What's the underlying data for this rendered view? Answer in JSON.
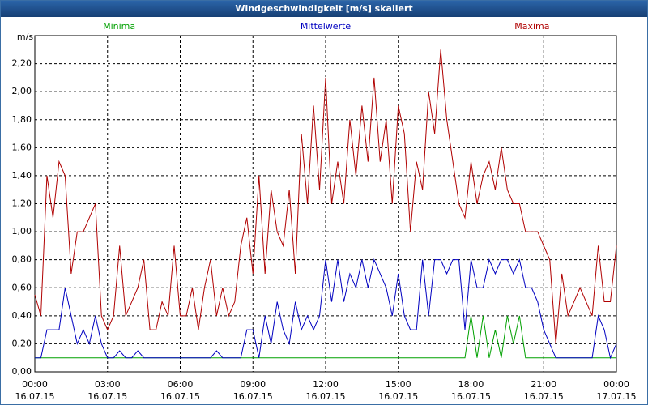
{
  "chart_data": {
    "type": "line",
    "title": "Windgeschwindigkeit [m/s] skaliert",
    "y_unit": "m/s",
    "x": [
      0,
      0.25,
      0.5,
      0.75,
      1,
      1.25,
      1.5,
      1.75,
      2,
      2.25,
      2.5,
      2.75,
      3,
      3.25,
      3.5,
      3.75,
      4,
      4.25,
      4.5,
      4.75,
      5,
      5.25,
      5.5,
      5.75,
      6,
      6.25,
      6.5,
      6.75,
      7,
      7.25,
      7.5,
      7.75,
      8,
      8.25,
      8.5,
      8.75,
      9,
      9.25,
      9.5,
      9.75,
      10,
      10.25,
      10.5,
      10.75,
      11,
      11.25,
      11.5,
      11.75,
      12,
      12.25,
      12.5,
      12.75,
      13,
      13.25,
      13.5,
      13.75,
      14,
      14.25,
      14.5,
      14.75,
      15,
      15.25,
      15.5,
      15.75,
      16,
      16.25,
      16.5,
      16.75,
      17,
      17.25,
      17.5,
      17.75,
      18,
      18.25,
      18.5,
      18.75,
      19,
      19.25,
      19.5,
      19.75,
      20,
      20.25,
      20.5,
      20.75,
      21,
      21.25,
      21.5,
      21.75,
      22,
      22.25,
      22.5,
      22.75,
      23,
      23.25,
      23.5,
      23.75,
      24
    ],
    "series": [
      {
        "name": "Minima",
        "color": "#00a000",
        "values": [
          0.1,
          0.1,
          0.1,
          0.1,
          0.1,
          0.1,
          0.1,
          0.1,
          0.1,
          0.1,
          0.1,
          0.1,
          0.1,
          0.1,
          0.1,
          0.1,
          0.1,
          0.1,
          0.1,
          0.1,
          0.1,
          0.1,
          0.1,
          0.1,
          0.1,
          0.1,
          0.1,
          0.1,
          0.1,
          0.1,
          0.1,
          0.1,
          0.1,
          0.1,
          0.1,
          0.1,
          0.1,
          0.1,
          0.1,
          0.1,
          0.1,
          0.1,
          0.1,
          0.1,
          0.1,
          0.1,
          0.1,
          0.1,
          0.1,
          0.1,
          0.1,
          0.1,
          0.1,
          0.1,
          0.1,
          0.1,
          0.1,
          0.1,
          0.1,
          0.1,
          0.1,
          0.1,
          0.1,
          0.1,
          0.1,
          0.1,
          0.1,
          0.1,
          0.1,
          0.1,
          0.1,
          0.1,
          0.4,
          0.1,
          0.4,
          0.1,
          0.3,
          0.1,
          0.4,
          0.2,
          0.4,
          0.1,
          0.1,
          0.1,
          0.1,
          0.1,
          0.1,
          0.1,
          0.1,
          0.1,
          0.1,
          0.1,
          0.1,
          0.1,
          0.1,
          0.1,
          0.1
        ]
      },
      {
        "name": "Mittelwerte",
        "color": "#0000c0",
        "values": [
          0.1,
          0.1,
          0.3,
          0.3,
          0.3,
          0.6,
          0.4,
          0.2,
          0.3,
          0.2,
          0.4,
          0.2,
          0.1,
          0.1,
          0.15,
          0.1,
          0.1,
          0.15,
          0.1,
          0.1,
          0.1,
          0.1,
          0.1,
          0.1,
          0.1,
          0.1,
          0.1,
          0.1,
          0.1,
          0.1,
          0.15,
          0.1,
          0.1,
          0.1,
          0.1,
          0.3,
          0.3,
          0.1,
          0.4,
          0.2,
          0.5,
          0.3,
          0.2,
          0.5,
          0.3,
          0.4,
          0.3,
          0.4,
          0.8,
          0.5,
          0.8,
          0.5,
          0.7,
          0.6,
          0.8,
          0.6,
          0.8,
          0.7,
          0.6,
          0.4,
          0.7,
          0.4,
          0.3,
          0.3,
          0.8,
          0.4,
          0.8,
          0.8,
          0.7,
          0.8,
          0.8,
          0.3,
          0.8,
          0.6,
          0.6,
          0.8,
          0.7,
          0.8,
          0.8,
          0.7,
          0.8,
          0.6,
          0.6,
          0.5,
          0.3,
          0.2,
          0.1,
          0.1,
          0.1,
          0.1,
          0.1,
          0.1,
          0.1,
          0.4,
          0.3,
          0.1,
          0.2
        ]
      },
      {
        "name": "Maxima",
        "color": "#b00000",
        "values": [
          0.55,
          0.4,
          1.4,
          1.1,
          1.5,
          1.4,
          0.7,
          1.0,
          1.0,
          1.1,
          1.2,
          0.4,
          0.3,
          0.4,
          0.9,
          0.4,
          0.5,
          0.6,
          0.8,
          0.3,
          0.3,
          0.5,
          0.4,
          0.9,
          0.4,
          0.4,
          0.6,
          0.3,
          0.6,
          0.8,
          0.4,
          0.6,
          0.4,
          0.5,
          0.9,
          1.1,
          0.7,
          1.4,
          0.7,
          1.3,
          1.0,
          0.9,
          1.3,
          0.7,
          1.7,
          1.2,
          1.9,
          1.3,
          2.1,
          1.2,
          1.5,
          1.2,
          1.8,
          1.4,
          1.9,
          1.5,
          2.1,
          1.5,
          1.8,
          1.2,
          1.9,
          1.7,
          1.0,
          1.5,
          1.3,
          2.0,
          1.7,
          2.3,
          1.8,
          1.5,
          1.2,
          1.1,
          1.5,
          1.2,
          1.4,
          1.5,
          1.3,
          1.6,
          1.3,
          1.2,
          1.2,
          1.0,
          1.0,
          1.0,
          0.9,
          0.8,
          0.2,
          0.7,
          0.4,
          0.5,
          0.6,
          0.5,
          0.4,
          0.9,
          0.5,
          0.5,
          0.9
        ]
      }
    ],
    "xlim": [
      0,
      24
    ],
    "xticks": [
      {
        "value": 0,
        "label": "00:00"
      },
      {
        "value": 3,
        "label": "03:00"
      },
      {
        "value": 6,
        "label": "06:00"
      },
      {
        "value": 9,
        "label": "09:00"
      },
      {
        "value": 12,
        "label": "12:00"
      },
      {
        "value": 15,
        "label": "15:00"
      },
      {
        "value": 18,
        "label": "18:00"
      },
      {
        "value": 21,
        "label": "21:00"
      },
      {
        "value": 24,
        "label": "00:00"
      }
    ],
    "xtick_dates": [
      "16.07.15",
      "16.07.15",
      "16.07.15",
      "16.07.15",
      "16.07.15",
      "16.07.15",
      "16.07.15",
      "16.07.15",
      "17.07.15"
    ],
    "ylim": [
      0,
      2.4
    ],
    "yticks": [
      {
        "value": 0,
        "label": "0,00"
      },
      {
        "value": 0.2,
        "label": "0,20"
      },
      {
        "value": 0.4,
        "label": "0,40"
      },
      {
        "value": 0.6,
        "label": "0,60"
      },
      {
        "value": 0.8,
        "label": "0,80"
      },
      {
        "value": 1.0,
        "label": "1,00"
      },
      {
        "value": 1.2,
        "label": "1,20"
      },
      {
        "value": 1.4,
        "label": "1,40"
      },
      {
        "value": 1.6,
        "label": "1,60"
      },
      {
        "value": 1.8,
        "label": "1,80"
      },
      {
        "value": 2.0,
        "label": "2,00"
      },
      {
        "value": 2.2,
        "label": "2,20"
      }
    ],
    "grid": true
  }
}
